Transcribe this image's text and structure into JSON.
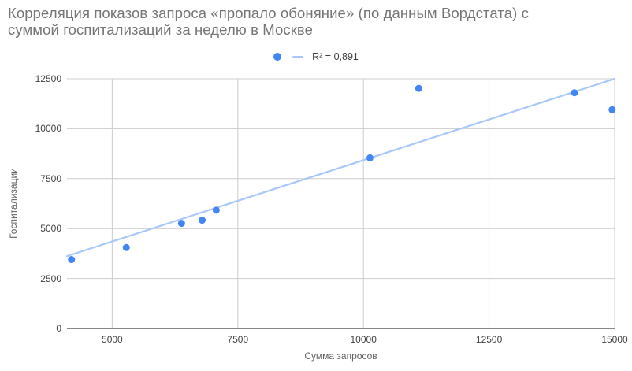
{
  "title": {
    "line1": "Корреляция показов запроса «пропало обоняние» (по данным Вордстата) с",
    "line2": "суммой госпитализаций за неделю в Москве"
  },
  "legend": {
    "series_marker": "filled-circle",
    "trendline_marker": "dash",
    "label": "R² = 0,891"
  },
  "chart_data": {
    "type": "scatter",
    "title": "Корреляция показов запроса «пропало обоняние» (по данным Вордстата) с суммой госпитализаций за неделю в Москве",
    "xlabel": "Сумма запросов",
    "ylabel": "Госпитализации",
    "xlim": [
      4100,
      15000
    ],
    "ylim": [
      0,
      12500
    ],
    "grid": true,
    "legend_position": "top-center",
    "x_ticks": [
      {
        "v": 5000,
        "label": "5000"
      },
      {
        "v": 7500,
        "label": "7500"
      },
      {
        "v": 10000,
        "label": "10000"
      },
      {
        "v": 12500,
        "label": "12500"
      },
      {
        "v": 15000,
        "label": "15000"
      }
    ],
    "y_ticks": [
      {
        "v": 0,
        "label": "0"
      },
      {
        "v": 2500,
        "label": "2500"
      },
      {
        "v": 5000,
        "label": "5000"
      },
      {
        "v": 7500,
        "label": "7500"
      },
      {
        "v": 10000,
        "label": "10000"
      },
      {
        "v": 12500,
        "label": "12500"
      }
    ],
    "points": [
      [
        4190,
        3450
      ],
      [
        5280,
        4050
      ],
      [
        6380,
        5260
      ],
      [
        6790,
        5420
      ],
      [
        7070,
        5920
      ],
      [
        10130,
        8540
      ],
      [
        11100,
        12020
      ],
      [
        14200,
        11800
      ],
      [
        14950,
        10950
      ]
    ],
    "trendline": {
      "type": "linear",
      "r_squared": 0.891,
      "endpoints": [
        [
          4100,
          3620
        ],
        [
          15000,
          12500
        ]
      ]
    },
    "colors": {
      "point": "#4285f4",
      "trendline": "#a8c7fa",
      "gridline": "#cccccc",
      "axis_line": "#424242",
      "title_text": "#757575",
      "tick_text": "#424242",
      "axis_title_text": "#616161"
    }
  }
}
